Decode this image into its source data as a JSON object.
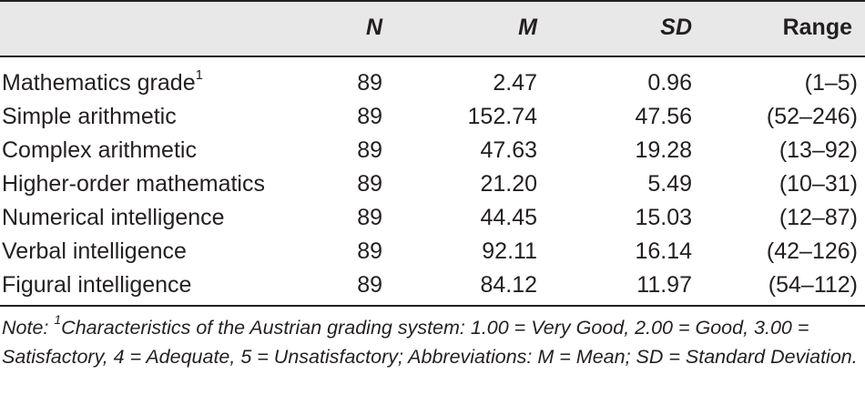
{
  "table": {
    "headers": {
      "variable": "",
      "n": "N",
      "m": "M",
      "sd": "SD",
      "range": "Range"
    },
    "rows": [
      {
        "variable": "Mathematics grade",
        "sup": "1",
        "n": "89",
        "m": "2.47",
        "sd": "0.96",
        "range": "(1–5)"
      },
      {
        "variable": "Simple arithmetic",
        "sup": "",
        "n": "89",
        "m": "152.74",
        "sd": "47.56",
        "range": "(52–246)"
      },
      {
        "variable": "Complex arithmetic",
        "sup": "",
        "n": "89",
        "m": "47.63",
        "sd": "19.28",
        "range": "(13–92)"
      },
      {
        "variable": "Higher-order mathematics",
        "sup": "",
        "n": "89",
        "m": "21.20",
        "sd": "5.49",
        "range": "(10–31)"
      },
      {
        "variable": "Numerical intelligence",
        "sup": "",
        "n": "89",
        "m": "44.45",
        "sd": "15.03",
        "range": "(12–87)"
      },
      {
        "variable": "Verbal intelligence",
        "sup": "",
        "n": "89",
        "m": "92.11",
        "sd": "16.14",
        "range": "(42–126)"
      },
      {
        "variable": "Figural intelligence",
        "sup": "",
        "n": "89",
        "m": "84.12",
        "sd": "11.97",
        "range": "(54–112)"
      }
    ]
  },
  "note": {
    "prefix": "Note: ",
    "sup": "1",
    "text": "Characteristics of the Austrian grading system: 1.00 = Very Good, 2.00 = Good, 3.00 = Satisfactory, 4 = Adequate, 5 = Unsatisfactory; Abbreviations: M = Mean; SD = Standard Deviation."
  }
}
